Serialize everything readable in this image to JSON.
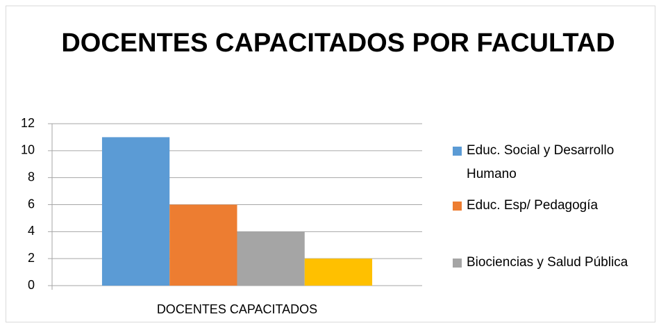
{
  "chart_data": {
    "type": "bar",
    "title": "DOCENTES CAPACITADOS POR FACULTAD",
    "categories": [
      "DOCENTES CAPACITADOS"
    ],
    "series": [
      {
        "name": "Educ. Social y Desarrollo Humano",
        "color": "#5b9bd5",
        "values": [
          11
        ]
      },
      {
        "name": "Educ. Esp/ Pedagogía",
        "color": "#ed7d31",
        "values": [
          6
        ]
      },
      {
        "name": "Biociencias y Salud Pública",
        "color": "#a5a5a5",
        "values": [
          4
        ]
      },
      {
        "color": "#ffc000",
        "values": [
          2
        ]
      }
    ],
    "ylim": [
      0,
      12
    ],
    "yticks": [
      0,
      2,
      4,
      6,
      8,
      10,
      12
    ],
    "grid": true,
    "legend": "right"
  }
}
